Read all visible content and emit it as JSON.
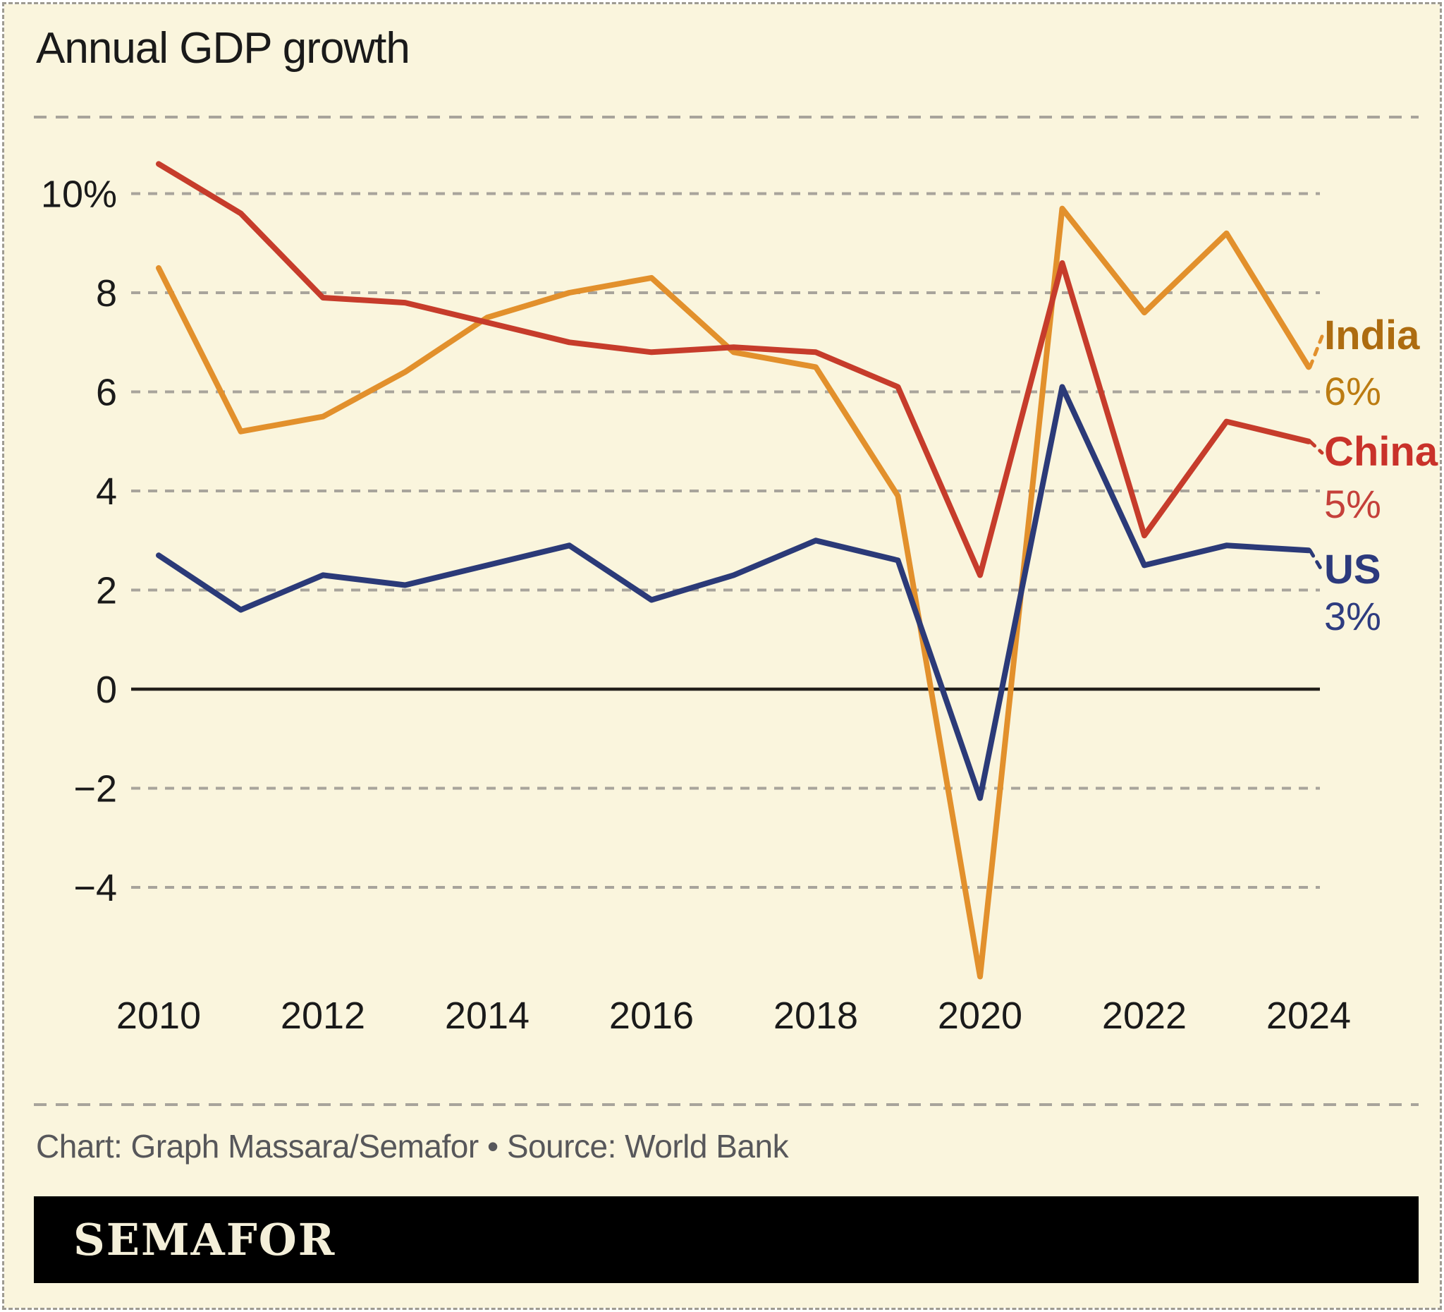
{
  "title": "Annual GDP growth",
  "credit": "Chart: Graph Massara/Semafor • Source: World Bank",
  "brand": "SEMAFOR",
  "colors": {
    "background": "#faf5dd",
    "card_border": "#9e9b92",
    "grid": "#a8a49b",
    "zero_line": "#221f1a",
    "axis_text": "#1a1a1a",
    "credit_text": "#57575a",
    "brand_bar": "#000000",
    "brand_text": "#f4efd9"
  },
  "chart_data": {
    "type": "line",
    "title": "Annual GDP growth",
    "unit": "%",
    "x": [
      2010,
      2011,
      2012,
      2013,
      2014,
      2015,
      2016,
      2017,
      2018,
      2019,
      2020,
      2021,
      2022,
      2023,
      2024
    ],
    "x_tick_labels": [
      "2010",
      "2012",
      "2014",
      "2016",
      "2018",
      "2020",
      "2022",
      "2024"
    ],
    "y_ticks": [
      {
        "value": 10,
        "label": "10%"
      },
      {
        "value": 8,
        "label": "8"
      },
      {
        "value": 6,
        "label": "6"
      },
      {
        "value": 4,
        "label": "4"
      },
      {
        "value": 2,
        "label": "2"
      },
      {
        "value": 0,
        "label": "0"
      },
      {
        "value": -2,
        "label": "−2"
      },
      {
        "value": -4,
        "label": "−4"
      }
    ],
    "ylim": [
      -6.5,
      11.5
    ],
    "grid": "horizontal-dashed",
    "legend_position": "right-end-labels",
    "series": [
      {
        "name": "India",
        "end_label": "6%",
        "color": "#e2902c",
        "label_color": "#ad6c10",
        "value_color": "#bc7c12",
        "values": [
          8.5,
          5.2,
          5.5,
          6.4,
          7.5,
          8.0,
          8.3,
          6.8,
          6.5,
          3.9,
          -5.8,
          9.7,
          7.6,
          9.2,
          6.5
        ]
      },
      {
        "name": "China",
        "end_label": "5%",
        "color": "#c63c2b",
        "label_color": "#c9322a",
        "value_color": "#c5403a",
        "values": [
          10.6,
          9.6,
          7.9,
          7.8,
          7.4,
          7.0,
          6.8,
          6.9,
          6.8,
          6.1,
          2.3,
          8.6,
          3.1,
          5.4,
          5.0
        ]
      },
      {
        "name": "US",
        "end_label": "3%",
        "color": "#2b3a78",
        "label_color": "#2c3a7d",
        "value_color": "#2e3c80",
        "values": [
          2.7,
          1.6,
          2.3,
          2.1,
          2.5,
          2.9,
          1.8,
          2.3,
          3.0,
          2.6,
          -2.2,
          6.1,
          2.5,
          2.9,
          2.8
        ]
      }
    ],
    "source": "World Bank"
  }
}
